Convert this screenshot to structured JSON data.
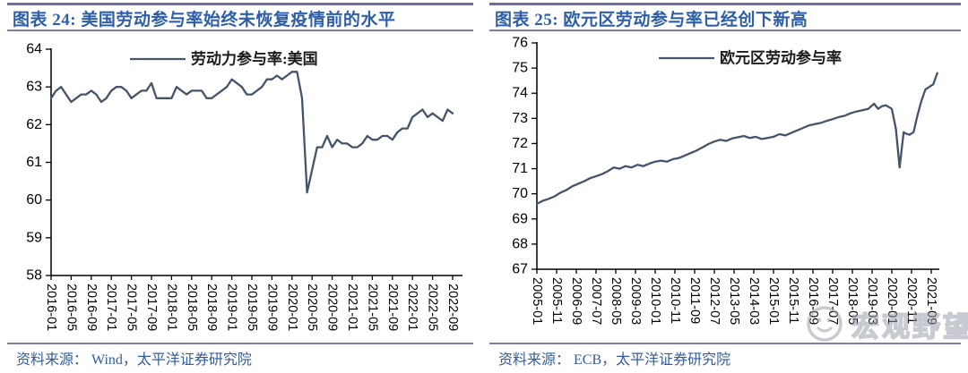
{
  "watermark": {
    "text": "宏观野望"
  },
  "colors": {
    "line": "#44546A",
    "axis": "#000000",
    "rule": "#6b6fa4",
    "title_text": "#2e5fa6",
    "source_text": "#315c9e",
    "watermark_gray": "#9aa0ab"
  },
  "chart_data": [
    {
      "type": "line",
      "title": "图表 24: 美国劳动参与率始终未恢复疫情前的水平",
      "legend": "劳动力参与率:美国",
      "source": "资料来源： Wind，太平洋证券研究院",
      "ylim": [
        58,
        64
      ],
      "ytick_step": 1,
      "grid": false,
      "legend_position": "top-center",
      "x_tick_labels": [
        "2016-01",
        "2016-05",
        "2016-09",
        "2017-01",
        "2017-05",
        "2017-09",
        "2018-01",
        "2018-05",
        "2018-09",
        "2019-01",
        "2019-05",
        "2019-09",
        "2020-01",
        "2020-05",
        "2020-09",
        "2021-01",
        "2021-05",
        "2021-09",
        "2022-01",
        "2022-05",
        "2022-09"
      ],
      "x_unit": "month",
      "values": [
        62.7,
        62.9,
        63.0,
        62.8,
        62.6,
        62.7,
        62.8,
        62.8,
        62.9,
        62.8,
        62.6,
        62.7,
        62.9,
        63.0,
        63.0,
        62.9,
        62.7,
        62.8,
        62.9,
        62.9,
        63.1,
        62.7,
        62.7,
        62.7,
        62.7,
        63.0,
        62.9,
        62.8,
        62.9,
        62.9,
        62.9,
        62.7,
        62.7,
        62.8,
        62.9,
        63.0,
        63.2,
        63.1,
        63.0,
        62.8,
        62.8,
        62.9,
        63.0,
        63.2,
        63.2,
        63.3,
        63.2,
        63.3,
        63.4,
        63.4,
        62.7,
        60.2,
        60.8,
        61.4,
        61.4,
        61.7,
        61.4,
        61.6,
        61.5,
        61.5,
        61.4,
        61.4,
        61.5,
        61.7,
        61.6,
        61.6,
        61.7,
        61.7,
        61.6,
        61.8,
        61.9,
        61.9,
        62.2,
        62.3,
        62.4,
        62.2,
        62.3,
        62.2,
        62.1,
        62.4,
        62.3
      ]
    },
    {
      "type": "line",
      "title": "图表 25: 欧元区劳动参与率已经创下新高",
      "legend": "欧元区劳动参与率",
      "source": "资料来源： ECB，太平洋证券研究院",
      "ylim": [
        67,
        76
      ],
      "ytick_step": 1,
      "grid": false,
      "legend_position": "top-center",
      "x_tick_labels": [
        "2005-01",
        "2005-11",
        "2006-09",
        "2007-07",
        "2008-05",
        "2009-03",
        "2010-01",
        "2010-11",
        "2011-09",
        "2012-07",
        "2013-05",
        "2014-03",
        "2015-01",
        "2015-11",
        "2016-09",
        "2017-07",
        "2018-05",
        "2019-03",
        "2020-01",
        "2020-11",
        "2021-09"
      ],
      "x_unit": "year-fraction",
      "x_range": [
        2005.0,
        2021.667
      ],
      "points": [
        [
          2005.0,
          69.6
        ],
        [
          2005.25,
          69.72
        ],
        [
          2005.5,
          69.8
        ],
        [
          2005.75,
          69.9
        ],
        [
          2006.0,
          70.05
        ],
        [
          2006.25,
          70.15
        ],
        [
          2006.5,
          70.3
        ],
        [
          2006.75,
          70.4
        ],
        [
          2007.0,
          70.5
        ],
        [
          2007.25,
          70.62
        ],
        [
          2007.5,
          70.7
        ],
        [
          2007.75,
          70.78
        ],
        [
          2008.0,
          70.9
        ],
        [
          2008.25,
          71.05
        ],
        [
          2008.5,
          71.0
        ],
        [
          2008.75,
          71.1
        ],
        [
          2009.0,
          71.05
        ],
        [
          2009.25,
          71.15
        ],
        [
          2009.5,
          71.1
        ],
        [
          2009.75,
          71.2
        ],
        [
          2010.0,
          71.28
        ],
        [
          2010.25,
          71.32
        ],
        [
          2010.5,
          71.28
        ],
        [
          2010.75,
          71.38
        ],
        [
          2011.0,
          71.42
        ],
        [
          2011.25,
          71.52
        ],
        [
          2011.5,
          71.62
        ],
        [
          2011.75,
          71.72
        ],
        [
          2012.0,
          71.85
        ],
        [
          2012.25,
          71.98
        ],
        [
          2012.5,
          72.08
        ],
        [
          2012.75,
          72.15
        ],
        [
          2013.0,
          72.1
        ],
        [
          2013.25,
          72.2
        ],
        [
          2013.5,
          72.25
        ],
        [
          2013.75,
          72.3
        ],
        [
          2014.0,
          72.22
        ],
        [
          2014.25,
          72.27
        ],
        [
          2014.5,
          72.18
        ],
        [
          2014.75,
          72.22
        ],
        [
          2015.0,
          72.27
        ],
        [
          2015.25,
          72.37
        ],
        [
          2015.5,
          72.32
        ],
        [
          2015.75,
          72.42
        ],
        [
          2016.0,
          72.52
        ],
        [
          2016.25,
          72.62
        ],
        [
          2016.5,
          72.72
        ],
        [
          2016.75,
          72.77
        ],
        [
          2017.0,
          72.82
        ],
        [
          2017.25,
          72.9
        ],
        [
          2017.5,
          72.97
        ],
        [
          2017.75,
          73.05
        ],
        [
          2018.0,
          73.1
        ],
        [
          2018.25,
          73.2
        ],
        [
          2018.5,
          73.27
        ],
        [
          2018.75,
          73.32
        ],
        [
          2019.0,
          73.38
        ],
        [
          2019.25,
          73.58
        ],
        [
          2019.42,
          73.38
        ],
        [
          2019.58,
          73.48
        ],
        [
          2019.75,
          73.52
        ],
        [
          2020.0,
          73.38
        ],
        [
          2020.17,
          72.6
        ],
        [
          2020.33,
          71.05
        ],
        [
          2020.5,
          72.45
        ],
        [
          2020.58,
          72.4
        ],
        [
          2020.75,
          72.35
        ],
        [
          2020.92,
          72.45
        ],
        [
          2021.08,
          73.1
        ],
        [
          2021.25,
          73.7
        ],
        [
          2021.42,
          74.15
        ],
        [
          2021.58,
          74.25
        ],
        [
          2021.75,
          74.35
        ],
        [
          2021.92,
          74.8
        ]
      ]
    }
  ]
}
